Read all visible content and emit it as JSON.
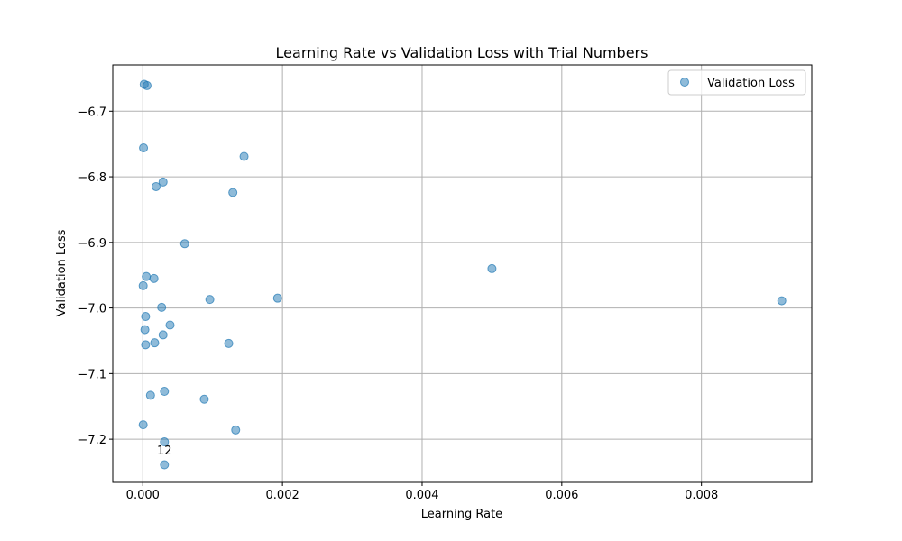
{
  "colors": {
    "point": "#1f77b4",
    "grid": "#b0b0b0",
    "axis": "#000000"
  },
  "chart_data": {
    "type": "scatter",
    "title": "Learning Rate vs Validation Loss with Trial Numbers",
    "xlabel": "Learning Rate",
    "ylabel": "Validation Loss",
    "xlim": [
      -0.00043,
      0.00958
    ],
    "ylim": [
      -7.2658,
      -6.6295
    ],
    "xticks": [
      0.0,
      0.002,
      0.004,
      0.006,
      0.008
    ],
    "xtick_labels": [
      "0.000",
      "0.002",
      "0.004",
      "0.006",
      "0.008"
    ],
    "yticks": [
      -6.7,
      -6.8,
      -6.9,
      -7.0,
      -7.1,
      -7.2
    ],
    "ytick_labels": [
      "−6.7",
      "−6.8",
      "−6.9",
      "−7.0",
      "−7.1",
      "−7.2"
    ],
    "grid": true,
    "legend": {
      "position": "top-right",
      "entries": [
        "Validation Loss"
      ]
    },
    "series": [
      {
        "name": "Validation Loss",
        "points": [
          {
            "x": 2e-05,
            "y": -6.659
          },
          {
            "x": 6e-05,
            "y": -6.661
          },
          {
            "x": 1e-05,
            "y": -6.756
          },
          {
            "x": 0.00145,
            "y": -6.769
          },
          {
            "x": 0.00029,
            "y": -6.808
          },
          {
            "x": 0.00019,
            "y": -6.815
          },
          {
            "x": 0.00129,
            "y": -6.824
          },
          {
            "x": 0.0006,
            "y": -6.902
          },
          {
            "x": 0.005,
            "y": -6.94
          },
          {
            "x": 5e-05,
            "y": -6.952
          },
          {
            "x": 0.00016,
            "y": -6.955
          },
          {
            "x": 5e-06,
            "y": -6.966
          },
          {
            "x": 0.00096,
            "y": -6.987
          },
          {
            "x": 0.00193,
            "y": -6.985
          },
          {
            "x": 0.00915,
            "y": -6.989
          },
          {
            "x": 0.00027,
            "y": -6.999
          },
          {
            "x": 4e-05,
            "y": -7.013
          },
          {
            "x": 0.00039,
            "y": -7.026
          },
          {
            "x": 3e-05,
            "y": -7.033
          },
          {
            "x": 0.00029,
            "y": -7.041
          },
          {
            "x": 0.00017,
            "y": -7.053
          },
          {
            "x": 0.00123,
            "y": -7.054
          },
          {
            "x": 4e-05,
            "y": -7.056
          },
          {
            "x": 0.00031,
            "y": -7.127
          },
          {
            "x": 0.00011,
            "y": -7.133
          },
          {
            "x": 0.00088,
            "y": -7.139
          },
          {
            "x": 5e-06,
            "y": -7.178
          },
          {
            "x": 0.00133,
            "y": -7.186
          },
          {
            "x": 0.00031,
            "y": -7.204
          },
          {
            "x": 0.00031,
            "y": -7.239
          }
        ]
      }
    ],
    "annotations": [
      {
        "text": "12",
        "x": 0.00031,
        "y": -7.216
      }
    ]
  }
}
